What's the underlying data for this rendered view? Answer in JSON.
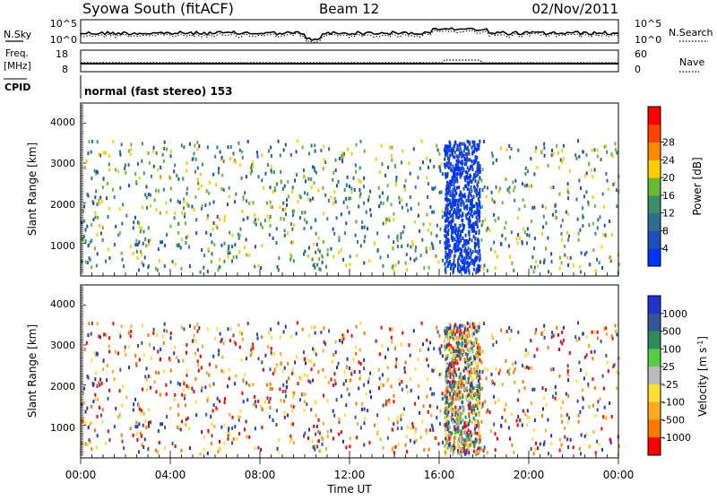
{
  "header": {
    "station": "Syowa South (fitACF)",
    "beam": "Beam 12",
    "date": "02/Nov/2011"
  },
  "noise_panel": {
    "label_left": "N.Sky",
    "label_right": "N.Search",
    "tick_top": "10^5",
    "tick_bottom": "10^0"
  },
  "freq_panel": {
    "label_left_line1": "Freq.",
    "label_left_line2": "[MHz]",
    "left_ticks": [
      "18",
      "8"
    ],
    "label_right": "Nave",
    "right_ticks": [
      "60",
      "0"
    ]
  },
  "cpid": {
    "label": "CPID",
    "mode_text": "normal (fast stereo) 153"
  },
  "x_axis": {
    "title": "Time UT",
    "ticks": [
      "00:00",
      "04:00",
      "08:00",
      "12:00",
      "16:00",
      "20:00",
      "00:00"
    ]
  },
  "chart_data": [
    {
      "type": "heatmap",
      "name": "power",
      "ylabel": "Slant Range [km]",
      "ylim": [
        180,
        4500
      ],
      "yticks": [
        "1000",
        "2000",
        "3000",
        "4000"
      ],
      "xlim": [
        0,
        24
      ],
      "colorbar": {
        "label": "Power [dB]",
        "ticks": [
          "4",
          "8",
          "12",
          "16",
          "20",
          "24",
          "28"
        ],
        "colors": [
          "#0033ff",
          "#1f4fbf",
          "#2e6f8e",
          "#3a8f6a",
          "#66bb33",
          "#ffcc00",
          "#ff8800",
          "#ff4400",
          "#ff0000"
        ]
      }
    },
    {
      "type": "heatmap",
      "name": "velocity",
      "ylabel": "Slant Range [km]",
      "ylim": [
        180,
        4500
      ],
      "yticks": [
        "1000",
        "2000",
        "3000",
        "4000"
      ],
      "xlim": [
        0,
        24
      ],
      "colorbar": {
        "label": "Velocity [m s^-1]",
        "ticks": [
          "1000",
          "500",
          "100",
          "25",
          "-25",
          "-100",
          "-500",
          "-1000"
        ],
        "colors": [
          "#2233cc",
          "#335599",
          "#2e8b57",
          "#55cc44",
          "#bbbbbb",
          "#ffdd33",
          "#ffaa22",
          "#ff7700",
          "#ff0000"
        ]
      }
    }
  ]
}
